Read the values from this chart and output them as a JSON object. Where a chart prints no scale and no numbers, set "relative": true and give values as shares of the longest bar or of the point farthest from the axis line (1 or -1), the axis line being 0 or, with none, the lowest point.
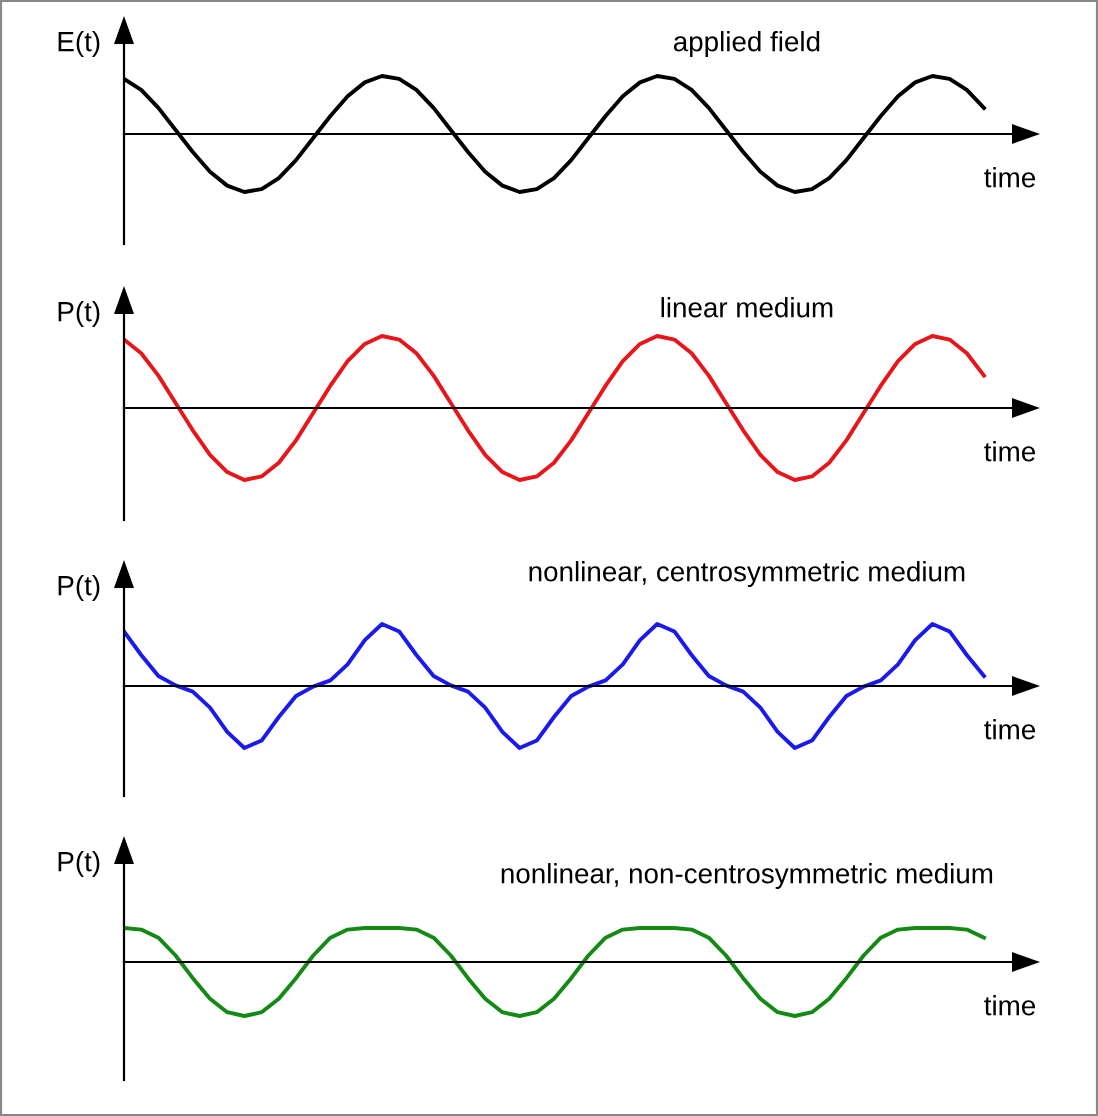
{
  "chart_data": [
    {
      "type": "line",
      "title": "applied field",
      "ylabel": "E(t)",
      "xlabel": "time",
      "relative": true,
      "categories": [
        null,
        null,
        null,
        null,
        null,
        null,
        null,
        null,
        null,
        null,
        null,
        null,
        null,
        null,
        null,
        null,
        null,
        null,
        null,
        null,
        null,
        null,
        null,
        null,
        null,
        null,
        null,
        null,
        null,
        null,
        null,
        null,
        null,
        null,
        null,
        null,
        null,
        null,
        null,
        null,
        null,
        null,
        null,
        null,
        null,
        null,
        null,
        null,
        null,
        null,
        null
      ],
      "series": [
        {
          "color": "#000000",
          "values": [
            0.95,
            0.76,
            0.45,
            0.07,
            -0.31,
            -0.65,
            -0.89,
            -1.0,
            -0.95,
            -0.76,
            -0.45,
            -0.07,
            0.31,
            0.65,
            0.89,
            1.0,
            0.95,
            0.76,
            0.45,
            0.07,
            -0.31,
            -0.65,
            -0.89,
            -1.0,
            -0.95,
            -0.76,
            -0.45,
            -0.07,
            0.31,
            0.65,
            0.89,
            1.0,
            0.95,
            0.76,
            0.45,
            0.07,
            -0.31,
            -0.65,
            -0.89,
            -1.0,
            -0.95,
            -0.76,
            -0.45,
            -0.07,
            0.31,
            0.65,
            0.89,
            1.0,
            0.95,
            0.76,
            0.45
          ]
        }
      ]
    },
    {
      "type": "line",
      "title": "linear medium",
      "ylabel": "P(t)",
      "xlabel": "time",
      "relative": true,
      "categories": [
        null,
        null,
        null,
        null,
        null,
        null,
        null,
        null,
        null,
        null,
        null,
        null,
        null,
        null,
        null,
        null,
        null,
        null,
        null,
        null,
        null,
        null,
        null,
        null,
        null,
        null,
        null,
        null,
        null,
        null,
        null,
        null,
        null,
        null,
        null,
        null,
        null,
        null,
        null,
        null,
        null,
        null,
        null,
        null,
        null,
        null,
        null,
        null,
        null,
        null,
        null
      ],
      "series": [
        {
          "color": "#e8161b",
          "values": [
            0.95,
            0.76,
            0.45,
            0.07,
            -0.31,
            -0.65,
            -0.89,
            -1.0,
            -0.95,
            -0.76,
            -0.45,
            -0.07,
            0.31,
            0.65,
            0.89,
            1.0,
            0.95,
            0.76,
            0.45,
            0.07,
            -0.31,
            -0.65,
            -0.89,
            -1.0,
            -0.95,
            -0.76,
            -0.45,
            -0.07,
            0.31,
            0.65,
            0.89,
            1.0,
            0.95,
            0.76,
            0.45,
            0.07,
            -0.31,
            -0.65,
            -0.89,
            -1.0,
            -0.95,
            -0.76,
            -0.45,
            -0.07,
            0.31,
            0.65,
            0.89,
            1.0,
            0.95,
            0.76,
            0.45
          ]
        }
      ]
    },
    {
      "type": "line",
      "title": "nonlinear, centrosymmetric medium",
      "ylabel": "P(t)",
      "xlabel": "time",
      "relative": true,
      "categories": [
        null,
        null,
        null,
        null,
        null,
        null,
        null,
        null,
        null,
        null,
        null,
        null,
        null,
        null,
        null,
        null,
        null,
        null,
        null,
        null,
        null,
        null,
        null,
        null,
        null,
        null,
        null,
        null,
        null,
        null,
        null,
        null,
        null,
        null,
        null,
        null,
        null,
        null,
        null,
        null,
        null,
        null,
        null,
        null,
        null,
        null,
        null,
        null,
        null,
        null,
        null
      ],
      "series": [
        {
          "color": "#1a1aef",
          "values": [
            0.88,
            0.5,
            0.16,
            0.01,
            -0.09,
            -0.35,
            -0.74,
            -1.0,
            -0.88,
            -0.5,
            -0.16,
            -0.01,
            0.09,
            0.35,
            0.74,
            1.0,
            0.88,
            0.5,
            0.16,
            0.01,
            -0.09,
            -0.35,
            -0.74,
            -1.0,
            -0.88,
            -0.5,
            -0.16,
            -0.01,
            0.09,
            0.35,
            0.74,
            1.0,
            0.88,
            0.5,
            0.16,
            0.01,
            -0.09,
            -0.35,
            -0.74,
            -1.0,
            -0.88,
            -0.5,
            -0.16,
            -0.01,
            0.09,
            0.35,
            0.74,
            1.0,
            0.88,
            0.5,
            0.16
          ]
        }
      ]
    },
    {
      "type": "line",
      "title": "nonlinear, non-centrosymmetric medium",
      "ylabel": "P(t)",
      "xlabel": "time",
      "relative": true,
      "categories": [
        null,
        null,
        null,
        null,
        null,
        null,
        null,
        null,
        null,
        null,
        null,
        null,
        null,
        null,
        null,
        null,
        null,
        null,
        null,
        null,
        null,
        null,
        null,
        null,
        null,
        null,
        null,
        null,
        null,
        null,
        null,
        null,
        null,
        null,
        null,
        null,
        null,
        null,
        null,
        null,
        null,
        null,
        null,
        null,
        null,
        null,
        null,
        null,
        null,
        null,
        null
      ],
      "series": [
        {
          "color": "#138a13",
          "values": [
            0.63,
            0.6,
            0.45,
            0.12,
            -0.3,
            -0.68,
            -0.93,
            -1.0,
            -0.93,
            -0.68,
            -0.3,
            0.12,
            0.45,
            0.6,
            0.63,
            0.63,
            0.63,
            0.6,
            0.45,
            0.12,
            -0.3,
            -0.68,
            -0.93,
            -1.0,
            -0.93,
            -0.68,
            -0.3,
            0.12,
            0.45,
            0.6,
            0.63,
            0.63,
            0.63,
            0.6,
            0.45,
            0.12,
            -0.3,
            -0.68,
            -0.93,
            -1.0,
            -0.93,
            -0.68,
            -0.3,
            0.12,
            0.45,
            0.6,
            0.63,
            0.63,
            0.63,
            0.6,
            0.45
          ]
        }
      ]
    }
  ]
}
